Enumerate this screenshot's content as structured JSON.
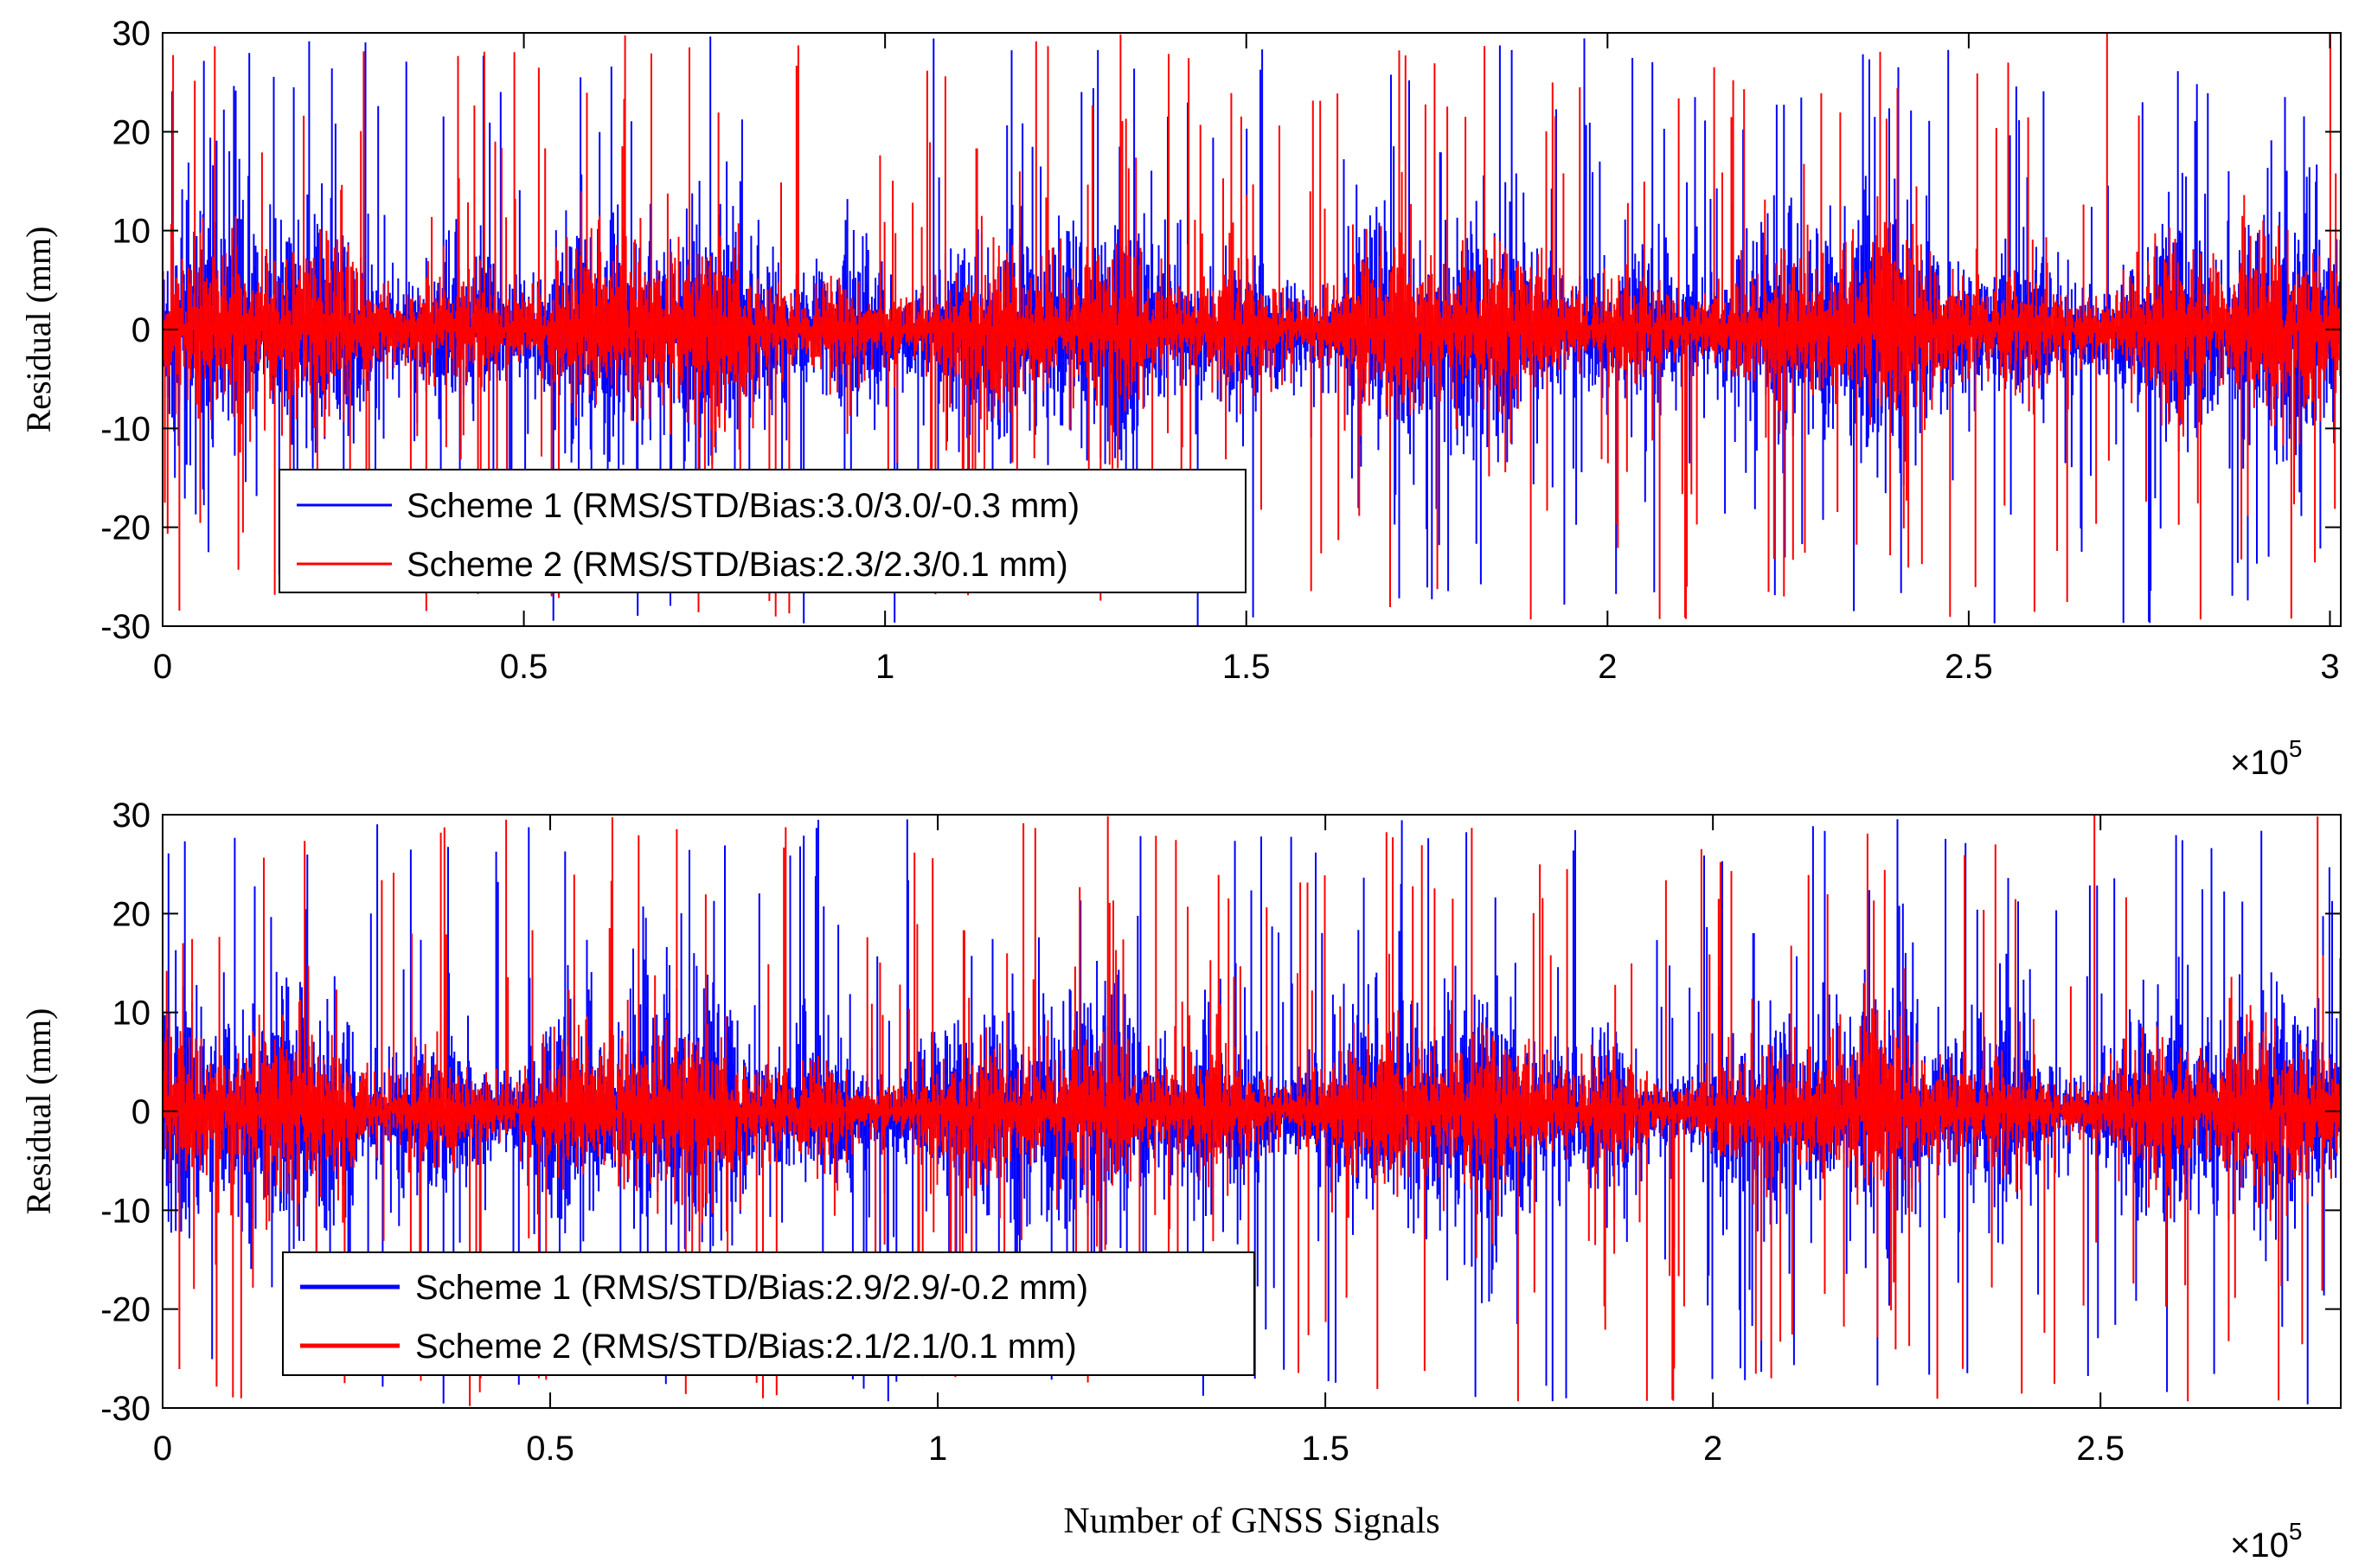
{
  "chart_data": [
    {
      "type": "line",
      "title": "",
      "xlabel": "",
      "ylabel": "Residual (mm)",
      "xlim": [
        0,
        301500
      ],
      "ylim": [
        -30,
        30
      ],
      "x_exponent_label": "×10",
      "x_exponent_power": "5",
      "xticks": [
        0,
        50000,
        100000,
        150000,
        200000,
        250000,
        300000
      ],
      "xtick_labels": [
        "0",
        "0.5",
        "1",
        "1.5",
        "2",
        "2.5",
        "3"
      ],
      "yticks": [
        30,
        20,
        10,
        0,
        -10,
        -20,
        -30
      ],
      "ytick_labels": [
        "30",
        "20",
        "10",
        "0",
        "-10",
        "-20",
        "-30"
      ],
      "legend_position": "bottom-left",
      "series": [
        {
          "name": "Scheme 1 (RMS/STD/Bias:3.0/3.0/-0.3 mm)",
          "color": "#0000ff",
          "rms": 3.0,
          "std": 3.0,
          "bias": -0.3
        },
        {
          "name": "Scheme 2 (RMS/STD/Bias:2.3/2.3/0.1 mm)",
          "color": "#ff0000",
          "rms": 2.3,
          "std": 2.3,
          "bias": 0.1
        }
      ]
    },
    {
      "type": "line",
      "title": "",
      "xlabel": "Number of GNSS Signals",
      "ylabel": "Residual (mm)",
      "xlim": [
        0,
        281000
      ],
      "ylim": [
        -30,
        30
      ],
      "x_exponent_label": "×10",
      "x_exponent_power": "5",
      "xticks": [
        0,
        50000,
        100000,
        150000,
        200000,
        250000
      ],
      "xtick_labels": [
        "0",
        "0.5",
        "1",
        "1.5",
        "2",
        "2.5"
      ],
      "yticks": [
        30,
        20,
        10,
        0,
        -10,
        -20,
        -30
      ],
      "ytick_labels": [
        "30",
        "20",
        "10",
        "0",
        "-10",
        "-20",
        "-30"
      ],
      "legend_position": "bottom-left",
      "series": [
        {
          "name": "Scheme 1 (RMS/STD/Bias:2.9/2.9/-0.2 mm)",
          "color": "#0000ff",
          "rms": 2.9,
          "std": 2.9,
          "bias": -0.2
        },
        {
          "name": "Scheme 2 (RMS/STD/Bias:2.1/2.1/0.1 mm)",
          "color": "#ff0000",
          "rms": 2.1,
          "std": 2.1,
          "bias": 0.1
        }
      ]
    }
  ]
}
